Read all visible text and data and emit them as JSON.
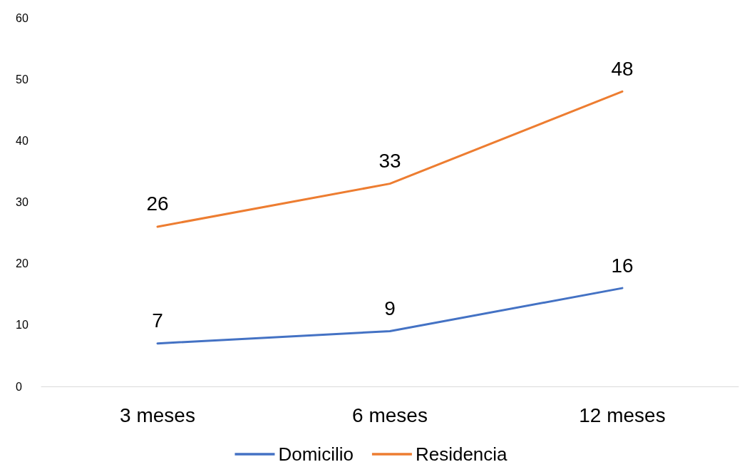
{
  "chart_data": {
    "type": "line",
    "categories": [
      "3 meses",
      "6 meses",
      "12 meses"
    ],
    "series": [
      {
        "name": "Domicilio",
        "color": "#4472c4",
        "values": [
          7,
          9,
          16
        ]
      },
      {
        "name": "Residencia",
        "color": "#ed7d31",
        "values": [
          26,
          33,
          48
        ]
      }
    ],
    "ylim": [
      0,
      60
    ],
    "yticks": [
      0,
      10,
      20,
      30,
      40,
      50,
      60
    ],
    "grid": false,
    "legend": "bottom",
    "marker": "none",
    "line_style": "solid",
    "data_labels": true
  }
}
